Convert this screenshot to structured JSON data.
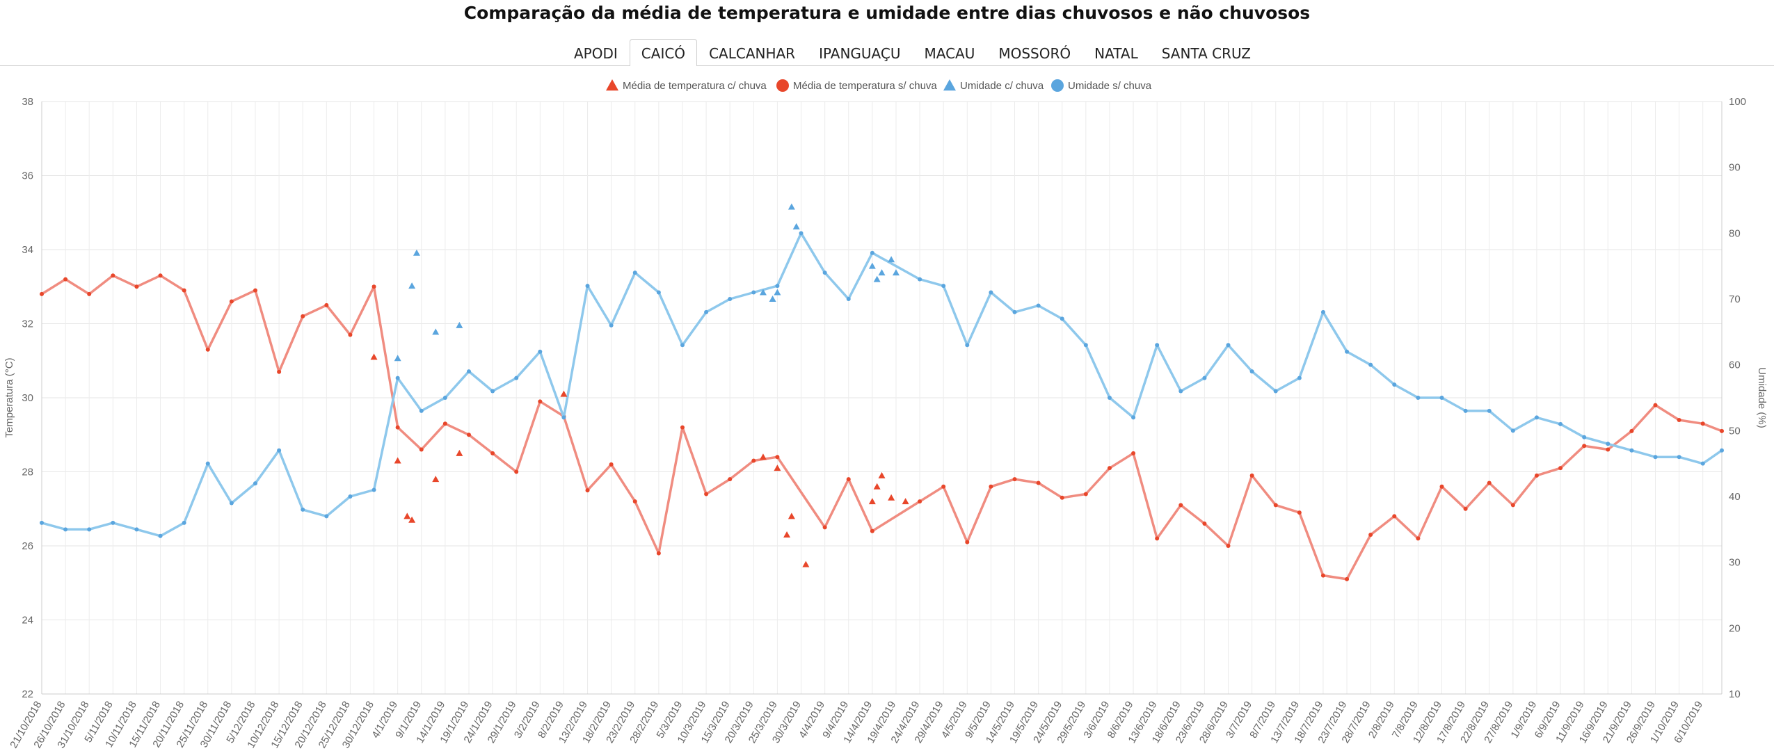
{
  "title": "Comparação da média de temperatura e umidade entre dias chuvosos e não chuvosos",
  "tabs": [
    {
      "label": "APODI",
      "active": false
    },
    {
      "label": "CAICÓ",
      "active": true
    },
    {
      "label": "CALCANHAR",
      "active": false
    },
    {
      "label": "IPANGUAÇU",
      "active": false
    },
    {
      "label": "MACAU",
      "active": false
    },
    {
      "label": "MOSSORÓ",
      "active": false
    },
    {
      "label": "NATAL",
      "active": false
    },
    {
      "label": "SANTA CRUZ",
      "active": false
    }
  ],
  "colors": {
    "temperature": "#e8462a",
    "humidity": "#5aa5de",
    "temperature_line": "#f08c80",
    "humidity_line": "#8ec8ec"
  },
  "chart_data": {
    "type": "line",
    "x_start": "21/10/2018",
    "x_end": "10/10/2019",
    "x_tick_labels": [
      "21/10/2018",
      "26/10/2018",
      "31/10/2018",
      "5/11/2018",
      "10/11/2018",
      "15/11/2018",
      "20/11/2018",
      "25/11/2018",
      "30/11/2018",
      "5/12/2018",
      "10/12/2018",
      "15/12/2018",
      "20/12/2018",
      "25/12/2018",
      "30/12/2018",
      "4/1/2019",
      "9/1/2019",
      "14/1/2019",
      "19/1/2019",
      "24/1/2019",
      "29/1/2019",
      "3/2/2019",
      "8/2/2019",
      "13/2/2019",
      "18/2/2019",
      "23/2/2019",
      "28/2/2019",
      "5/3/2019",
      "10/3/2019",
      "15/3/2019",
      "20/3/2019",
      "25/3/2019",
      "30/3/2019",
      "4/4/2019",
      "9/4/2019",
      "14/4/2019",
      "19/4/2019",
      "24/4/2019",
      "29/4/2019",
      "4/5/2019",
      "9/5/2019",
      "14/5/2019",
      "19/5/2019",
      "24/5/2019",
      "29/5/2019",
      "3/6/2019",
      "8/6/2019",
      "13/6/2019",
      "18/6/2019",
      "23/6/2019",
      "28/6/2019",
      "3/7/2019",
      "8/7/2019",
      "13/7/2019",
      "18/7/2019",
      "23/7/2019",
      "28/7/2019",
      "2/8/2019",
      "7/8/2019",
      "12/8/2019",
      "17/8/2019",
      "22/8/2019",
      "27/8/2019",
      "1/9/2019",
      "6/9/2019",
      "11/9/2019",
      "16/9/2019",
      "21/9/2019",
      "26/9/2019",
      "1/10/2019",
      "6/10/2019"
    ],
    "y_left": {
      "label": "Temperatura (°C)",
      "range": [
        22,
        38
      ],
      "ticks": [
        22,
        24,
        26,
        28,
        30,
        32,
        34,
        36,
        38
      ]
    },
    "y_right": {
      "label": "Umidade (%)",
      "range": [
        10,
        100
      ],
      "ticks": [
        10,
        20,
        30,
        40,
        50,
        60,
        70,
        80,
        90,
        100
      ]
    },
    "grid": true,
    "legend_position": "top",
    "legend": [
      {
        "name": "Média de temperatura c/ chuva",
        "marker": "triangle",
        "color": "#e8462a"
      },
      {
        "name": "Média de temperatura s/ chuva",
        "marker": "circle",
        "color": "#e8462a"
      },
      {
        "name": "Umidade c/ chuva",
        "marker": "triangle",
        "color": "#5aa5de"
      },
      {
        "name": "Umidade s/ chuva",
        "marker": "circle",
        "color": "#5aa5de"
      }
    ],
    "series": [
      {
        "name": "Média de temperatura s/ chuva",
        "axis": "left",
        "marker": "circle",
        "points": [
          [
            "21/10/2018",
            32.8
          ],
          [
            "26/10/2018",
            33.2
          ],
          [
            "31/10/2018",
            32.8
          ],
          [
            "5/11/2018",
            33.3
          ],
          [
            "10/11/2018",
            33.0
          ],
          [
            "15/11/2018",
            33.3
          ],
          [
            "20/11/2018",
            32.9
          ],
          [
            "25/11/2018",
            31.3
          ],
          [
            "30/11/2018",
            32.6
          ],
          [
            "5/12/2018",
            32.9
          ],
          [
            "10/12/2018",
            30.7
          ],
          [
            "15/12/2018",
            32.2
          ],
          [
            "20/12/2018",
            32.5
          ],
          [
            "25/12/2018",
            31.7
          ],
          [
            "30/12/2018",
            33.0
          ],
          [
            "4/1/2019",
            29.2
          ],
          [
            "9/1/2019",
            28.6
          ],
          [
            "14/1/2019",
            29.3
          ],
          [
            "19/1/2019",
            29.0
          ],
          [
            "24/1/2019",
            28.5
          ],
          [
            "29/1/2019",
            28.0
          ],
          [
            "3/2/2019",
            29.9
          ],
          [
            "8/2/2019",
            29.5
          ],
          [
            "13/2/2019",
            27.5
          ],
          [
            "18/2/2019",
            28.2
          ],
          [
            "23/2/2019",
            27.2
          ],
          [
            "28/2/2019",
            25.8
          ],
          [
            "5/3/2019",
            29.2
          ],
          [
            "10/3/2019",
            27.4
          ],
          [
            "15/3/2019",
            27.8
          ],
          [
            "20/3/2019",
            28.3
          ],
          [
            "25/3/2019",
            28.4
          ],
          [
            "4/4/2019",
            26.5
          ],
          [
            "9/4/2019",
            27.8
          ],
          [
            "14/4/2019",
            26.4
          ],
          [
            "24/4/2019",
            27.2
          ],
          [
            "29/4/2019",
            27.6
          ],
          [
            "4/5/2019",
            26.1
          ],
          [
            "9/5/2019",
            27.6
          ],
          [
            "14/5/2019",
            27.8
          ],
          [
            "19/5/2019",
            27.7
          ],
          [
            "24/5/2019",
            27.3
          ],
          [
            "29/5/2019",
            27.4
          ],
          [
            "3/6/2019",
            28.1
          ],
          [
            "8/6/2019",
            28.5
          ],
          [
            "13/6/2019",
            26.2
          ],
          [
            "18/6/2019",
            27.1
          ],
          [
            "23/6/2019",
            26.6
          ],
          [
            "28/6/2019",
            26.0
          ],
          [
            "3/7/2019",
            27.9
          ],
          [
            "8/7/2019",
            27.1
          ],
          [
            "13/7/2019",
            26.9
          ],
          [
            "18/7/2019",
            25.2
          ],
          [
            "23/7/2019",
            25.1
          ],
          [
            "28/7/2019",
            26.3
          ],
          [
            "2/8/2019",
            26.8
          ],
          [
            "7/8/2019",
            26.2
          ],
          [
            "12/8/2019",
            27.6
          ],
          [
            "17/8/2019",
            27.0
          ],
          [
            "22/8/2019",
            27.7
          ],
          [
            "27/8/2019",
            27.1
          ],
          [
            "1/9/2019",
            27.9
          ],
          [
            "6/9/2019",
            28.1
          ],
          [
            "11/9/2019",
            28.7
          ],
          [
            "16/9/2019",
            28.6
          ],
          [
            "21/9/2019",
            29.1
          ],
          [
            "26/9/2019",
            29.8
          ],
          [
            "1/10/2019",
            29.4
          ],
          [
            "6/10/2019",
            29.3
          ],
          [
            "10/10/2019",
            29.1
          ]
        ]
      },
      {
        "name": "Umidade s/ chuva",
        "axis": "right",
        "marker": "circle",
        "points": [
          [
            "21/10/2018",
            36
          ],
          [
            "26/10/2018",
            35
          ],
          [
            "31/10/2018",
            35
          ],
          [
            "5/11/2018",
            36
          ],
          [
            "10/11/2018",
            35
          ],
          [
            "15/11/2018",
            34
          ],
          [
            "20/11/2018",
            36
          ],
          [
            "25/11/2018",
            45
          ],
          [
            "30/11/2018",
            39
          ],
          [
            "5/12/2018",
            42
          ],
          [
            "10/12/2018",
            47
          ],
          [
            "15/12/2018",
            38
          ],
          [
            "20/12/2018",
            37
          ],
          [
            "25/12/2018",
            40
          ],
          [
            "30/12/2018",
            41
          ],
          [
            "4/1/2019",
            58
          ],
          [
            "9/1/2019",
            53
          ],
          [
            "14/1/2019",
            55
          ],
          [
            "19/1/2019",
            59
          ],
          [
            "24/1/2019",
            56
          ],
          [
            "29/1/2019",
            58
          ],
          [
            "3/2/2019",
            62
          ],
          [
            "8/2/2019",
            52
          ],
          [
            "13/2/2019",
            72
          ],
          [
            "18/2/2019",
            66
          ],
          [
            "23/2/2019",
            74
          ],
          [
            "28/2/2019",
            71
          ],
          [
            "5/3/2019",
            63
          ],
          [
            "10/3/2019",
            68
          ],
          [
            "15/3/2019",
            70
          ],
          [
            "20/3/2019",
            71
          ],
          [
            "25/3/2019",
            72
          ],
          [
            "30/3/2019",
            80
          ],
          [
            "4/4/2019",
            74
          ],
          [
            "9/4/2019",
            70
          ],
          [
            "14/4/2019",
            77
          ],
          [
            "24/4/2019",
            73
          ],
          [
            "29/4/2019",
            72
          ],
          [
            "4/5/2019",
            63
          ],
          [
            "9/5/2019",
            71
          ],
          [
            "14/5/2019",
            68
          ],
          [
            "19/5/2019",
            69
          ],
          [
            "24/5/2019",
            67
          ],
          [
            "29/5/2019",
            63
          ],
          [
            "3/6/2019",
            55
          ],
          [
            "8/6/2019",
            52
          ],
          [
            "13/6/2019",
            63
          ],
          [
            "18/6/2019",
            56
          ],
          [
            "23/6/2019",
            58
          ],
          [
            "28/6/2019",
            63
          ],
          [
            "3/7/2019",
            59
          ],
          [
            "8/7/2019",
            56
          ],
          [
            "13/7/2019",
            58
          ],
          [
            "18/7/2019",
            68
          ],
          [
            "23/7/2019",
            62
          ],
          [
            "28/7/2019",
            60
          ],
          [
            "2/8/2019",
            57
          ],
          [
            "7/8/2019",
            55
          ],
          [
            "12/8/2019",
            55
          ],
          [
            "17/8/2019",
            53
          ],
          [
            "22/8/2019",
            53
          ],
          [
            "27/8/2019",
            50
          ],
          [
            "1/9/2019",
            52
          ],
          [
            "6/9/2019",
            51
          ],
          [
            "11/9/2019",
            49
          ],
          [
            "16/9/2019",
            48
          ],
          [
            "21/9/2019",
            47
          ],
          [
            "26/9/2019",
            46
          ],
          [
            "1/10/2019",
            46
          ],
          [
            "6/10/2019",
            45
          ],
          [
            "10/10/2019",
            47
          ]
        ]
      },
      {
        "name": "Média de temperatura c/ chuva",
        "axis": "left",
        "marker": "triangle",
        "points": [
          [
            "30/12/2018",
            31.1
          ],
          [
            "4/1/2019",
            28.3
          ],
          [
            "6/1/2019",
            26.8
          ],
          [
            "7/1/2019",
            26.7
          ],
          [
            "12/1/2019",
            27.8
          ],
          [
            "17/1/2019",
            28.5
          ],
          [
            "8/2/2019",
            30.1
          ],
          [
            "22/3/2019",
            28.4
          ],
          [
            "25/3/2019",
            28.1
          ],
          [
            "27/3/2019",
            26.3
          ],
          [
            "28/3/2019",
            26.8
          ],
          [
            "31/3/2019",
            25.5
          ],
          [
            "15/4/2019",
            27.6
          ],
          [
            "16/4/2019",
            27.9
          ],
          [
            "18/4/2019",
            27.3
          ],
          [
            "14/4/2019",
            27.2
          ],
          [
            "21/4/2019",
            27.2
          ]
        ]
      },
      {
        "name": "Umidade c/ chuva",
        "axis": "right",
        "marker": "triangle",
        "points": [
          [
            "4/1/2019",
            61
          ],
          [
            "7/1/2019",
            72
          ],
          [
            "8/1/2019",
            77
          ],
          [
            "12/1/2019",
            65
          ],
          [
            "17/1/2019",
            66
          ],
          [
            "22/3/2019",
            71
          ],
          [
            "24/3/2019",
            70
          ],
          [
            "25/3/2019",
            71
          ],
          [
            "28/3/2019",
            84
          ],
          [
            "29/3/2019",
            81
          ],
          [
            "15/4/2019",
            73
          ],
          [
            "16/4/2019",
            74
          ],
          [
            "18/4/2019",
            76
          ],
          [
            "19/4/2019",
            74
          ],
          [
            "14/4/2019",
            75
          ]
        ]
      }
    ]
  }
}
